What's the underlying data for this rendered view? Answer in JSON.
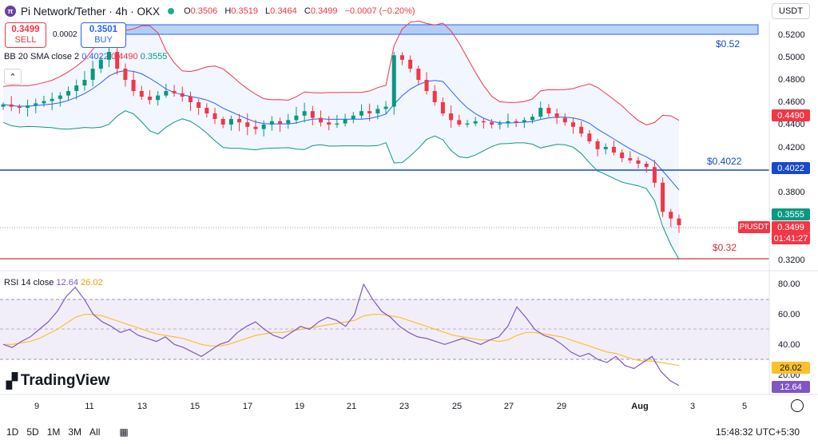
{
  "header": {
    "title": "Pi Network/Tether · 4h · OKX",
    "ohlc": {
      "o_label": "O",
      "o": "0.3506",
      "h_label": "H",
      "h": "0.3519",
      "l_label": "L",
      "l": "0.3464",
      "c_label": "C",
      "c": "0.3499",
      "change": "−0.0007 (−0.20%)"
    },
    "currency": "USDT"
  },
  "trade": {
    "sell_price": "0.3499",
    "sell_label": "SELL",
    "buy_price": "0.3501",
    "buy_label": "BUY",
    "spread": "0.0002"
  },
  "indicators": {
    "bb_label": "BB 20 SMA close 2",
    "bb_basis": "0.4022",
    "bb_upper": "0.4490",
    "bb_lower": "0.3555",
    "rsi_label": "RSI 14 close",
    "rsi_value": "12.64",
    "rsi_ma": "26.02"
  },
  "price_axis": [
    "0.5200",
    "0.5000",
    "0.4800",
    "0.4600",
    "0.4400",
    "0.4200",
    "0.3800",
    "0.3200"
  ],
  "rsi_axis": [
    "80.00",
    "60.00",
    "40.00",
    "20.00"
  ],
  "price_tags": {
    "upper": "0.4490",
    "basis": "0.4022",
    "lower": "0.3555",
    "symbol": "PIUSDT",
    "last": "0.3499",
    "countdown": "01:41:27",
    "rsi_ma": "26.02",
    "rsi": "12.64"
  },
  "annotations": {
    "resistance": "$0.52",
    "support_mid": "$0.4022",
    "support_low": "$0.32"
  },
  "x_axis": [
    "9",
    "11",
    "13",
    "15",
    "17",
    "19",
    "21",
    "23",
    "25",
    "27",
    "29",
    "Aug",
    "3",
    "5"
  ],
  "timeframes": [
    "1D",
    "5D",
    "1M",
    "3M",
    "All"
  ],
  "clock": "15:48:32 UTC+5:30",
  "brand": "TradingView",
  "colors": {
    "up": "#089981",
    "down": "#f23645",
    "bb_basis": "#2962ff",
    "bb_upper": "#f23645",
    "bb_lower": "#089981",
    "rsi": "#7e57c2",
    "rsi_ma": "#fbc02d"
  },
  "chart_data": {
    "type": "candlestick",
    "symbol": "PIUSDT",
    "timeframe": "4h",
    "ylim": [
      0.31,
      0.53
    ],
    "horizontal_lines": [
      0.52,
      0.4022,
      0.32
    ],
    "close_approx": [
      0.458,
      0.456,
      0.455,
      0.457,
      0.459,
      0.461,
      0.463,
      0.466,
      0.47,
      0.475,
      0.48,
      0.49,
      0.498,
      0.505,
      0.49,
      0.48,
      0.47,
      0.465,
      0.462,
      0.466,
      0.47,
      0.468,
      0.465,
      0.46,
      0.455,
      0.45,
      0.445,
      0.44,
      0.445,
      0.442,
      0.438,
      0.436,
      0.44,
      0.443,
      0.441,
      0.444,
      0.448,
      0.452,
      0.446,
      0.442,
      0.44,
      0.441,
      0.445,
      0.448,
      0.452,
      0.45,
      0.454,
      0.456,
      0.502,
      0.498,
      0.49,
      0.48,
      0.47,
      0.46,
      0.45,
      0.444,
      0.44,
      0.441,
      0.443,
      0.442,
      0.44,
      0.441,
      0.443,
      0.442,
      0.444,
      0.447,
      0.455,
      0.45,
      0.446,
      0.442,
      0.438,
      0.432,
      0.425,
      0.418,
      0.42,
      0.415,
      0.41,
      0.408,
      0.405,
      0.402,
      0.388,
      0.362,
      0.356,
      0.35
    ],
    "rsi_approx": [
      40,
      38,
      42,
      45,
      50,
      55,
      62,
      72,
      78,
      70,
      60,
      55,
      52,
      48,
      50,
      46,
      44,
      42,
      45,
      40,
      38,
      35,
      32,
      36,
      40,
      42,
      48,
      52,
      55,
      50,
      46,
      44,
      48,
      52,
      50,
      55,
      58,
      56,
      52,
      60,
      80,
      70,
      62,
      58,
      52,
      48,
      45,
      44,
      42,
      40,
      42,
      44,
      42,
      40,
      43,
      45,
      52,
      65,
      58,
      50,
      46,
      44,
      40,
      35,
      32,
      34,
      30,
      28,
      32,
      26,
      24,
      28,
      32,
      22,
      16,
      12.64
    ],
    "rsi_ma_approx": [
      40,
      40,
      41,
      42,
      44,
      47,
      50,
      54,
      58,
      60,
      60,
      59,
      57,
      55,
      53,
      51,
      49,
      47,
      46,
      45,
      44,
      42,
      40,
      39,
      39,
      40,
      42,
      44,
      46,
      47,
      48,
      48,
      49,
      50,
      51,
      52,
      53,
      54,
      55,
      56,
      59,
      60,
      60,
      59,
      58,
      56,
      54,
      52,
      50,
      48,
      46,
      45,
      44,
      43,
      43,
      42,
      43,
      46,
      48,
      48,
      47,
      46,
      45,
      43,
      41,
      39,
      37,
      35,
      34,
      32,
      30,
      29,
      29,
      28,
      27,
      26.02
    ]
  }
}
